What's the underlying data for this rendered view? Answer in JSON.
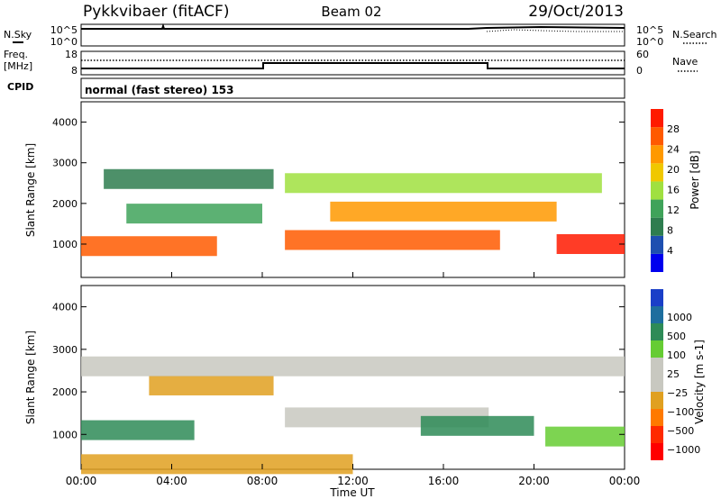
{
  "header": {
    "site": "Pykkvibaer (fitACF)",
    "beam": "Beam 02",
    "date": "29/Oct/2013"
  },
  "status_panels": {
    "nsky": {
      "label": "N.Sky",
      "ticks_left": [
        "10^5",
        "10^0"
      ]
    },
    "nsearch": {
      "label": "N.Search",
      "ticks_right": [
        "10^5",
        "10^0"
      ]
    },
    "freq": {
      "label_line1": "Freq.",
      "label_line2": "[MHz]",
      "ticks_left": [
        "18",
        "8"
      ]
    },
    "nave": {
      "label": "Nave",
      "ticks_right": [
        "60",
        "0"
      ]
    },
    "cpid": {
      "label": "CPID",
      "value": "normal (fast stereo) 153"
    }
  },
  "colors": {
    "power_scale": [
      "#0000ee",
      "#1e4fb0",
      "#2e7d4f",
      "#3fa35a",
      "#a0e040",
      "#f0c800",
      "#ff9900",
      "#ff5a00",
      "#ff1a00"
    ],
    "velocity_scale": [
      "#1a3fc8",
      "#1e6e9e",
      "#2e8b57",
      "#66cc33",
      "#c8c8c0",
      "#c8c8c0",
      "#e0a020",
      "#ff7a00",
      "#ff2a00",
      "#ff0000"
    ]
  },
  "chart_data": [
    {
      "type": "heatmap",
      "panel": "power",
      "ylabel": "Slant Range [km]",
      "ylim": [
        180,
        4500
      ],
      "yticks": [
        "1000",
        "2000",
        "3000",
        "4000"
      ],
      "xticks": [
        "00:00",
        "04:00",
        "08:00",
        "12:00",
        "16:00",
        "20:00",
        "00:00"
      ],
      "colorbar": {
        "label": "Power [dB]",
        "ticks": [
          "4",
          "8",
          "12",
          "16",
          "20",
          "24",
          "28"
        ],
        "range": [
          0,
          30
        ]
      },
      "bands": [
        {
          "t_start": 0.0,
          "t_end": 6.0,
          "range_km": 950,
          "value_db": 26
        },
        {
          "t_start": 9.0,
          "t_end": 18.5,
          "range_km": 1100,
          "value_db": 25
        },
        {
          "t_start": 21.0,
          "t_end": 24.0,
          "range_km": 1000,
          "value_db": 27
        },
        {
          "t_start": 2.0,
          "t_end": 8.0,
          "range_km": 1750,
          "value_db": 12
        },
        {
          "t_start": 11.0,
          "t_end": 21.0,
          "range_km": 1800,
          "value_db": 22
        },
        {
          "t_start": 1.0,
          "t_end": 8.5,
          "range_km": 2600,
          "value_db": 8
        },
        {
          "t_start": 9.0,
          "t_end": 23.0,
          "range_km": 2500,
          "value_db": 16
        }
      ]
    },
    {
      "type": "heatmap",
      "panel": "velocity",
      "ylabel": "Slant Range [km]",
      "ylim": [
        180,
        4500
      ],
      "yticks": [
        "1000",
        "2000",
        "3000",
        "4000"
      ],
      "xticks": [
        "00:00",
        "04:00",
        "08:00",
        "12:00",
        "16:00",
        "20:00",
        "00:00"
      ],
      "xlabel": "Time UT",
      "colorbar": {
        "label": "Velocity [m s-1]",
        "ticks": [
          "1000",
          "500",
          "100",
          "25",
          "−25",
          "−100",
          "−500",
          "−1000"
        ]
      },
      "bands": [
        {
          "t_start": 0.0,
          "t_end": 5.0,
          "range_km": 1100,
          "velocity": 150
        },
        {
          "t_start": 3.0,
          "t_end": 8.5,
          "range_km": 2150,
          "velocity": -80
        },
        {
          "t_start": 9.0,
          "t_end": 18.0,
          "range_km": 1400,
          "velocity": 0
        },
        {
          "t_start": 15.0,
          "t_end": 20.0,
          "range_km": 1200,
          "velocity": 150
        },
        {
          "t_start": 20.5,
          "t_end": 24.0,
          "range_km": 950,
          "velocity": 80
        },
        {
          "t_start": 0.0,
          "t_end": 24.0,
          "range_km": 2600,
          "velocity": 0
        },
        {
          "t_start": 0.0,
          "t_end": 12.0,
          "range_km": 300,
          "velocity": -90
        }
      ]
    }
  ]
}
